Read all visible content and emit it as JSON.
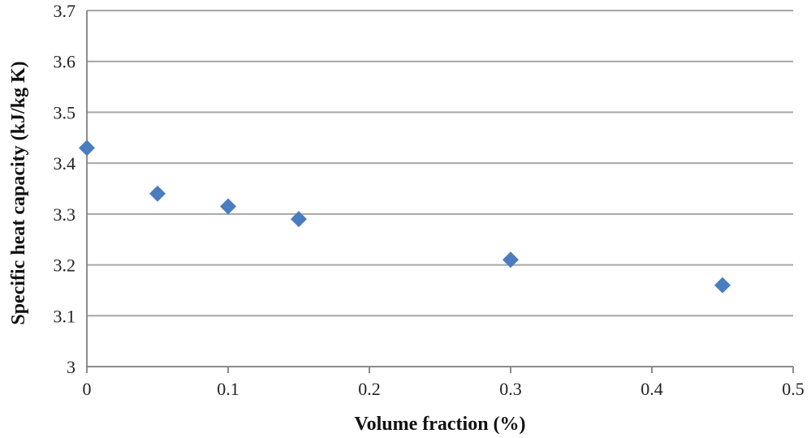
{
  "chart_data": {
    "type": "scatter",
    "xlabel": "Volume fraction (%)",
    "ylabel": "Specific heat capacity (kJ/kg K)",
    "xlim": [
      0,
      0.5
    ],
    "ylim": [
      3,
      3.7
    ],
    "x_ticks": [
      "0",
      "0.1",
      "0.2",
      "0.3",
      "0.4",
      "0.5"
    ],
    "y_ticks": [
      "3",
      "3.1",
      "3.2",
      "3.3",
      "3.4",
      "3.5",
      "3.6",
      "3.7"
    ],
    "grid": true,
    "marker": "diamond",
    "color": "#4a7dbf",
    "series": [
      {
        "x": [
          0,
          0.05,
          0.1,
          0.15,
          0.3,
          0.45
        ],
        "y": [
          3.43,
          3.34,
          3.315,
          3.29,
          3.21,
          3.16
        ]
      }
    ]
  }
}
